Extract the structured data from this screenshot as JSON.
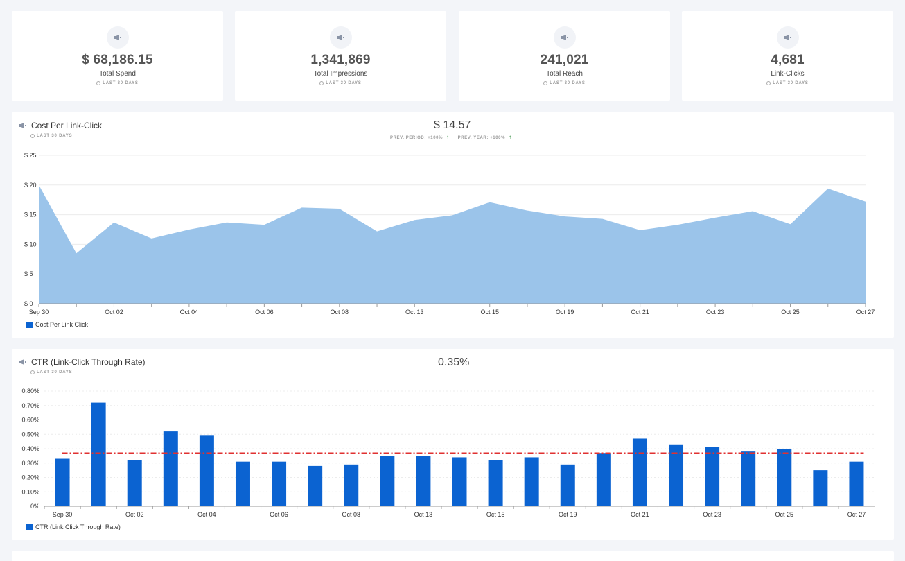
{
  "stats": [
    {
      "value": "$ 68,186.15",
      "label": "Total Spend",
      "period": "LAST 30 DAYS",
      "icon": "megaphone-icon"
    },
    {
      "value": "1,341,869",
      "label": "Total Impressions",
      "period": "LAST 30 DAYS",
      "icon": "megaphone-icon"
    },
    {
      "value": "241,021",
      "label": "Total Reach",
      "period": "LAST 30 DAYS",
      "icon": "megaphone-icon"
    },
    {
      "value": "4,681",
      "label": "Link-Clicks",
      "period": "LAST 30 DAYS",
      "icon": "megaphone-icon"
    }
  ],
  "cpc": {
    "title": "Cost Per Link-Click",
    "period": "LAST 30 DAYS",
    "value": "$ 14.57",
    "prev_period": "PREV. PERIOD: +100%",
    "prev_year": "PREV. YEAR: +100%",
    "legend": "Cost Per Link Click"
  },
  "ctr": {
    "title": "CTR (Link-Click Through Rate)",
    "period": "LAST 30 DAYS",
    "value": "0.35%",
    "legend": "CTR (Link Click Through Rate)"
  },
  "chart_data": [
    {
      "type": "area",
      "title": "Cost Per Link-Click",
      "x": [
        "Sep 30",
        "Oct 01",
        "Oct 02",
        "Oct 03",
        "Oct 04",
        "Oct 05",
        "Oct 06",
        "Oct 07",
        "Oct 08",
        "Oct 09",
        "Oct 13",
        "Oct 14",
        "Oct 15",
        "Oct 16",
        "Oct 19",
        "Oct 20",
        "Oct 21",
        "Oct 22",
        "Oct 23",
        "Oct 24",
        "Oct 25",
        "Oct 26",
        "Oct 27"
      ],
      "values": [
        20,
        8.5,
        13.7,
        11,
        12.5,
        13.7,
        13.3,
        16.2,
        16,
        12.2,
        14.1,
        14.9,
        17.1,
        15.7,
        14.7,
        14.3,
        12.4,
        13.3,
        14.5,
        15.6,
        13.4,
        19.4,
        17.2
      ],
      "tick_labels": [
        "Sep 30",
        "Oct 02",
        "Oct 04",
        "Oct 06",
        "Oct 08",
        "Oct 13",
        "Oct 15",
        "Oct 19",
        "Oct 21",
        "Oct 23",
        "Oct 25",
        "Oct 27"
      ],
      "y_ticks": [
        "$ 0",
        "$ 5",
        "$ 10",
        "$ 15",
        "$ 20",
        "$ 25"
      ],
      "ylim": [
        0,
        25
      ],
      "color": "#9bc4ea",
      "legend": "Cost Per Link Click"
    },
    {
      "type": "bar",
      "title": "CTR (Link-Click Through Rate)",
      "categories": [
        "Sep 30",
        "Oct 01",
        "Oct 02",
        "Oct 03",
        "Oct 04",
        "Oct 05",
        "Oct 06",
        "Oct 07",
        "Oct 08",
        "Oct 09",
        "Oct 13",
        "Oct 14",
        "Oct 15",
        "Oct 16",
        "Oct 19",
        "Oct 20",
        "Oct 21",
        "Oct 22",
        "Oct 23",
        "Oct 24",
        "Oct 25",
        "Oct 26",
        "Oct 27"
      ],
      "values": [
        0.33,
        0.72,
        0.32,
        0.52,
        0.49,
        0.31,
        0.31,
        0.28,
        0.29,
        0.35,
        0.35,
        0.34,
        0.32,
        0.34,
        0.29,
        0.37,
        0.47,
        0.43,
        0.41,
        0.38,
        0.4,
        0.25,
        0.31
      ],
      "tick_labels": [
        "Sep 30",
        "Oct 02",
        "Oct 04",
        "Oct 06",
        "Oct 08",
        "Oct 13",
        "Oct 15",
        "Oct 19",
        "Oct 21",
        "Oct 23",
        "Oct 25",
        "Oct 27"
      ],
      "y_ticks": [
        "0%",
        "0.10%",
        "0.20%",
        "0.30%",
        "0.40%",
        "0.50%",
        "0.60%",
        "0.70%",
        "0.80%"
      ],
      "ylim": [
        0,
        0.8
      ],
      "average": 0.37,
      "color": "#0b63d1",
      "average_color": "#e03131",
      "legend": "CTR (Link Click Through Rate)"
    }
  ]
}
